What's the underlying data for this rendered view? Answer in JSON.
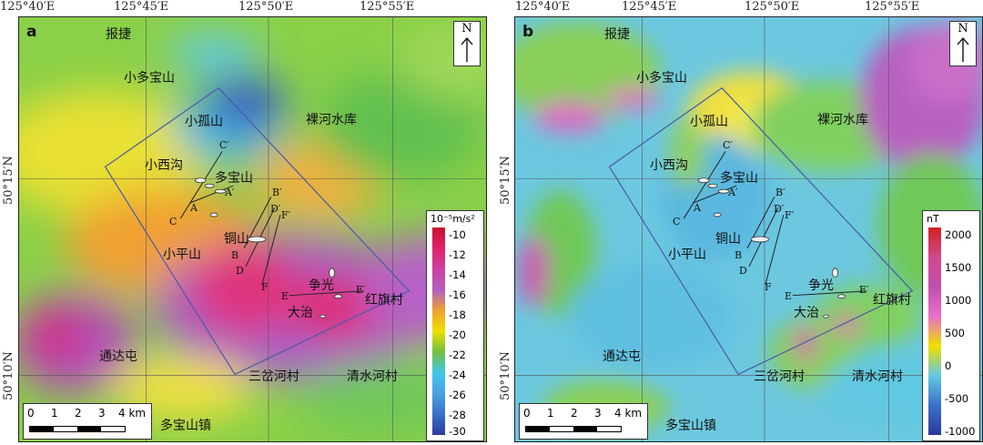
{
  "coords": {
    "lon_a": [
      "125°40′E",
      "125°45′E",
      "125°50′E",
      "125°55′E"
    ],
    "lon_b": [
      "125°40′E",
      "125°45′E",
      "125°50′E",
      "125°55′E"
    ],
    "lat_a": [
      "50°15′N",
      "50°10′N"
    ],
    "lat_b": [
      "50°15′N",
      "50°10′N"
    ]
  },
  "panel_a": {
    "label": "a",
    "north": "N",
    "scale": {
      "ticks": [
        "0",
        "1",
        "2",
        "3",
        "4 km"
      ]
    },
    "legend": {
      "unit": "10⁻⁵m/s²",
      "ticks": [
        "-10",
        "-12",
        "-14",
        "-16",
        "-18",
        "-20",
        "-22",
        "-24",
        "-26",
        "-28",
        "-30"
      ],
      "colors": [
        "#c8102e",
        "#e0226a",
        "#d040a0",
        "#b060c0",
        "#f0a030",
        "#f0e000",
        "#70c040",
        "#40c8e8",
        "#4aa0e0",
        "#3a70c8",
        "#2a3a9a"
      ]
    },
    "places": {
      "baojie": "报捷",
      "xiaoduobaoshan": "小多宝山",
      "xiaogushan": "小孤山",
      "luohe": "裸河水库",
      "xiaoxigou": "小西沟",
      "duobaoshan": "多宝山",
      "tongshan": "铜山",
      "xiaopingshan": "小平山",
      "zhengguang": "争光",
      "hongqicun": "红旗村",
      "dazhi": "大治",
      "tongdatun": "通达屯",
      "sanchahe": "三岔河村",
      "qingshuihe": "清水河村",
      "duobaoshanzhen": "多宝山镇"
    },
    "letters": {
      "A": "A",
      "Ap": "A′",
      "B": "B",
      "Bp": "B′",
      "C": "C",
      "Cp": "C′",
      "D": "D",
      "Dp": "D′",
      "E": "E",
      "Ep": "E′",
      "F": "F",
      "Fp": "F′"
    }
  },
  "panel_b": {
    "label": "b",
    "north": "N",
    "scale": {
      "ticks": [
        "0",
        "1",
        "2",
        "3",
        "4 km"
      ]
    },
    "legend": {
      "unit": "nT",
      "ticks": [
        "2000",
        "1500",
        "1000",
        "500",
        "0",
        "-500",
        "-1000"
      ],
      "colors": [
        "#d02020",
        "#d04a8a",
        "#c050b0",
        "#e870c8",
        "#f0e000",
        "#60c8e0",
        "#3a70c8",
        "#2a3a9a"
      ]
    },
    "places": {
      "baojie": "报捷",
      "xiaoduobaoshan": "小多宝山",
      "xiaogushan": "小孤山",
      "luohe": "裸河水库",
      "xiaoxigou": "小西沟",
      "duobaoshan": "多宝山",
      "tongshan": "铜山",
      "xiaopingshan": "小平山",
      "zhengguang": "争光",
      "hongqicun": "红旗村",
      "dazhi": "大治",
      "tongdatun": "通达屯",
      "sanchahe": "三岔河村",
      "qingshuihe": "清水河村",
      "duobaoshanzhen": "多宝山镇"
    },
    "letters": {
      "A": "A",
      "Ap": "A′",
      "B": "B",
      "Bp": "B′",
      "C": "C",
      "Cp": "C′",
      "D": "D",
      "Dp": "D′",
      "E": "E",
      "Ep": "E′",
      "F": "F",
      "Fp": "F′"
    }
  }
}
